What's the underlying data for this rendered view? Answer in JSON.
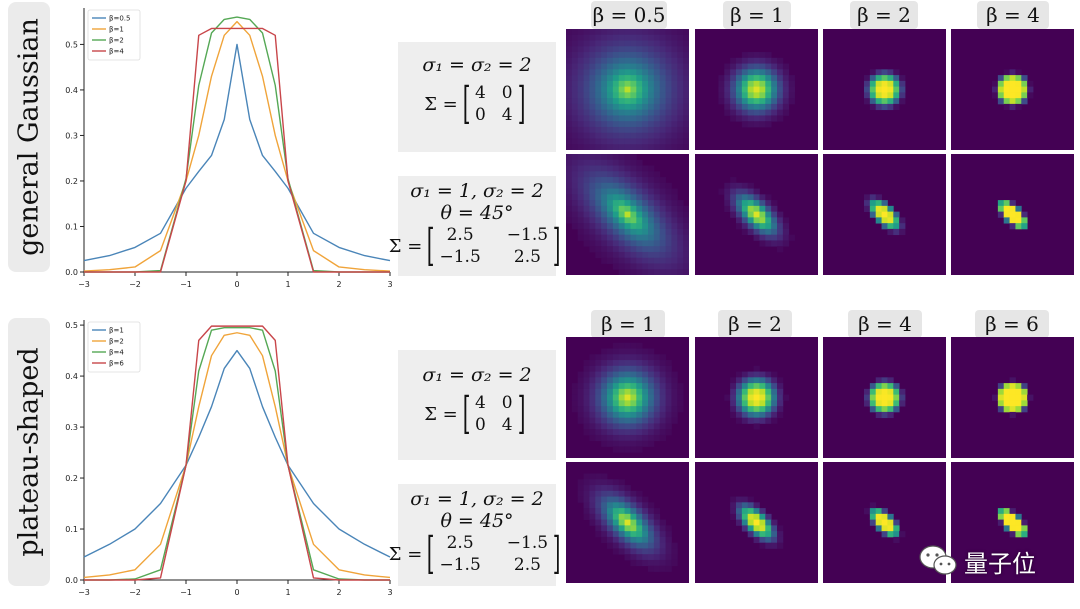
{
  "row_labels": [
    "general Gaussian",
    "plateau-shaped"
  ],
  "equations": {
    "iso": {
      "sigma": "σ₁ = σ₂ = 2",
      "sigma_prefix": "Σ =",
      "matrix": [
        "4",
        "0",
        "0",
        "4"
      ]
    },
    "aniso": {
      "sigma": "σ₁ = 1, σ₂ = 2",
      "theta": "θ = 45°",
      "sigma_prefix": "Σ =",
      "matrix": [
        "2.5",
        "−1.5",
        "−1.5",
        "2.5"
      ]
    }
  },
  "beta_tabs": {
    "top": [
      "β = 0.5",
      "β = 1",
      "β = 2",
      "β = 4"
    ],
    "bottom": [
      "β = 1",
      "β = 2",
      "β = 4",
      "β = 6"
    ]
  },
  "chart_data": [
    {
      "type": "line",
      "x": [
        -3,
        -2.5,
        -2,
        -1.5,
        -1,
        -0.75,
        -0.5,
        -0.25,
        0,
        0.25,
        0.5,
        0.75,
        1,
        1.5,
        2,
        2.5,
        3
      ],
      "xlim": [
        -3,
        3
      ],
      "ylim": [
        0,
        0.58
      ],
      "xticks": [
        -3,
        -2,
        -1,
        0,
        1,
        2,
        3
      ],
      "yticks": [
        0.0,
        0.1,
        0.2,
        0.3,
        0.4,
        0.5
      ],
      "ytick_labels": [
        "0.0",
        "0.1",
        "0.2",
        "0.3",
        "0.4",
        "0.5"
      ],
      "legend_position": "top-left",
      "series": [
        {
          "name": "β=0.5",
          "color": "#4a85b8",
          "values": [
            0.025,
            0.036,
            0.054,
            0.085,
            0.184,
            0.221,
            0.256,
            0.335,
            0.5,
            0.335,
            0.256,
            0.221,
            0.184,
            0.085,
            0.054,
            0.036,
            0.025
          ]
        },
        {
          "name": "β=1",
          "color": "#f0a43a",
          "values": [
            0.002,
            0.005,
            0.011,
            0.047,
            0.2,
            0.3,
            0.43,
            0.52,
            0.55,
            0.52,
            0.43,
            0.3,
            0.2,
            0.047,
            0.011,
            0.005,
            0.002
          ]
        },
        {
          "name": "β=2",
          "color": "#55a855",
          "values": [
            0,
            0,
            0.0,
            0.003,
            0.205,
            0.41,
            0.525,
            0.555,
            0.56,
            0.555,
            0.525,
            0.41,
            0.205,
            0.003,
            0.0,
            0,
            0
          ]
        },
        {
          "name": "β=4",
          "color": "#c8464a",
          "values": [
            0,
            0,
            0,
            0,
            0.2,
            0.52,
            0.535,
            0.535,
            0.535,
            0.535,
            0.535,
            0.52,
            0.2,
            0,
            0,
            0,
            0
          ]
        }
      ]
    },
    {
      "type": "line",
      "x": [
        -3,
        -2.5,
        -2,
        -1.5,
        -1,
        -0.75,
        -0.5,
        -0.25,
        0,
        0.25,
        0.5,
        0.75,
        1,
        1.5,
        2,
        2.5,
        3
      ],
      "xlim": [
        -3,
        3
      ],
      "ylim": [
        0,
        0.51
      ],
      "xticks": [
        -3,
        -2,
        -1,
        0,
        1,
        2,
        3
      ],
      "yticks": [
        0.0,
        0.1,
        0.2,
        0.3,
        0.4,
        0.5
      ],
      "ytick_labels": [
        "0.0",
        "0.1",
        "0.2",
        "0.3",
        "0.4",
        "0.5"
      ],
      "legend_position": "top-left",
      "series": [
        {
          "name": "β=1",
          "color": "#4a85b8",
          "values": [
            0.045,
            0.07,
            0.1,
            0.15,
            0.225,
            0.28,
            0.34,
            0.415,
            0.45,
            0.415,
            0.34,
            0.28,
            0.225,
            0.15,
            0.1,
            0.07,
            0.045
          ]
        },
        {
          "name": "β=2",
          "color": "#f0a43a",
          "values": [
            0.005,
            0.01,
            0.02,
            0.07,
            0.225,
            0.34,
            0.44,
            0.48,
            0.485,
            0.48,
            0.44,
            0.34,
            0.225,
            0.07,
            0.02,
            0.01,
            0.005
          ]
        },
        {
          "name": "β=4",
          "color": "#55a855",
          "values": [
            0,
            0,
            0.002,
            0.02,
            0.225,
            0.41,
            0.49,
            0.495,
            0.495,
            0.495,
            0.49,
            0.41,
            0.225,
            0.02,
            0.002,
            0,
            0
          ]
        },
        {
          "name": "β=6",
          "color": "#c8464a",
          "values": [
            0,
            0,
            0,
            0.004,
            0.225,
            0.47,
            0.498,
            0.498,
            0.498,
            0.498,
            0.498,
            0.47,
            0.225,
            0.004,
            0,
            0,
            0
          ]
        }
      ]
    }
  ],
  "kernels": {
    "top_iso": [
      {
        "r": 0.36,
        "sharp": 0.6,
        "bright": 0.9
      },
      {
        "r": 0.24,
        "sharp": 1.0,
        "bright": 0.95
      },
      {
        "r": 0.19,
        "sharp": 2.0,
        "bright": 1.0
      },
      {
        "r": 0.19,
        "sharp": 4.0,
        "bright": 1.0
      }
    ],
    "top_aniso": [
      {
        "r": 0.34,
        "sharp": 0.6,
        "bright": 0.9
      },
      {
        "r": 0.22,
        "sharp": 1.0,
        "bright": 0.95
      },
      {
        "r": 0.18,
        "sharp": 2.0,
        "bright": 1.0
      },
      {
        "r": 0.17,
        "sharp": 4.0,
        "bright": 1.0
      }
    ],
    "bottom_iso": [
      {
        "r": 0.28,
        "sharp": 0.8,
        "bright": 0.95
      },
      {
        "r": 0.22,
        "sharp": 1.4,
        "bright": 1.0
      },
      {
        "r": 0.19,
        "sharp": 2.6,
        "bright": 1.0
      },
      {
        "r": 0.19,
        "sharp": 5.0,
        "bright": 1.0
      }
    ],
    "bottom_aniso": [
      {
        "r": 0.26,
        "sharp": 0.8,
        "bright": 0.95
      },
      {
        "r": 0.2,
        "sharp": 1.4,
        "bright": 1.0
      },
      {
        "r": 0.17,
        "sharp": 2.6,
        "bright": 1.0
      },
      {
        "r": 0.17,
        "sharp": 5.0,
        "bright": 1.0
      }
    ]
  },
  "watermark": {
    "text": "量子位",
    "icon": "wechat-icon"
  }
}
